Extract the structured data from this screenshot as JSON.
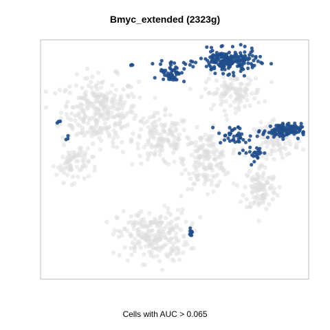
{
  "chart_data": {
    "type": "scatter",
    "title": "Bmyc_extended (2323g)",
    "caption": "Cells with AUC > 0.065",
    "xlabel": "",
    "ylabel": "",
    "axes_visible": false,
    "grid": false,
    "xlim": [
      0,
      100
    ],
    "ylim": [
      0,
      100
    ],
    "series": [
      {
        "role": "background",
        "color": "#dedede",
        "regions": [
          {
            "center": [
              22,
              70
            ],
            "spread": [
              12,
              12
            ],
            "count": 300
          },
          {
            "center": [
              45,
              58
            ],
            "spread": [
              9,
              9
            ],
            "count": 140
          },
          {
            "center": [
              62,
              50
            ],
            "spread": [
              7,
              10
            ],
            "count": 160
          },
          {
            "center": [
              82,
              38
            ],
            "spread": [
              5,
              8
            ],
            "count": 110
          },
          {
            "center": [
              42,
              18
            ],
            "spread": [
              11,
              9
            ],
            "count": 230
          },
          {
            "center": [
              72,
              78
            ],
            "spread": [
              9,
              6
            ],
            "count": 110
          },
          {
            "center": [
              88,
              58
            ],
            "spread": [
              7,
              6
            ],
            "count": 90
          },
          {
            "center": [
              12,
              48
            ],
            "spread": [
              5,
              6
            ],
            "count": 70
          }
        ]
      },
      {
        "role": "highlighted",
        "color": "#1f4e8c",
        "regions": [
          {
            "center": [
              70,
              91
            ],
            "spread": [
              9,
              4
            ],
            "count": 190
          },
          {
            "center": [
              49,
              87
            ],
            "spread": [
              4,
              4
            ],
            "count": 55
          },
          {
            "center": [
              90,
              62
            ],
            "spread": [
              6,
              2.5
            ],
            "count": 110
          },
          {
            "center": [
              72,
              60
            ],
            "spread": [
              5,
              3.5
            ],
            "count": 35
          },
          {
            "center": [
              80,
              53
            ],
            "spread": [
              4,
              4
            ],
            "count": 25
          },
          {
            "center": [
              56,
              20
            ],
            "spread": [
              0.4,
              1.5
            ],
            "count": 10
          },
          {
            "center": [
              7,
              66
            ],
            "spread": [
              0.4,
              0.8
            ],
            "count": 3
          },
          {
            "center": [
              10,
              59
            ],
            "spread": [
              0.4,
              0.8
            ],
            "count": 3
          },
          {
            "center": [
              34,
              89
            ],
            "spread": [
              0.4,
              0.8
            ],
            "count": 3
          }
        ]
      }
    ]
  }
}
